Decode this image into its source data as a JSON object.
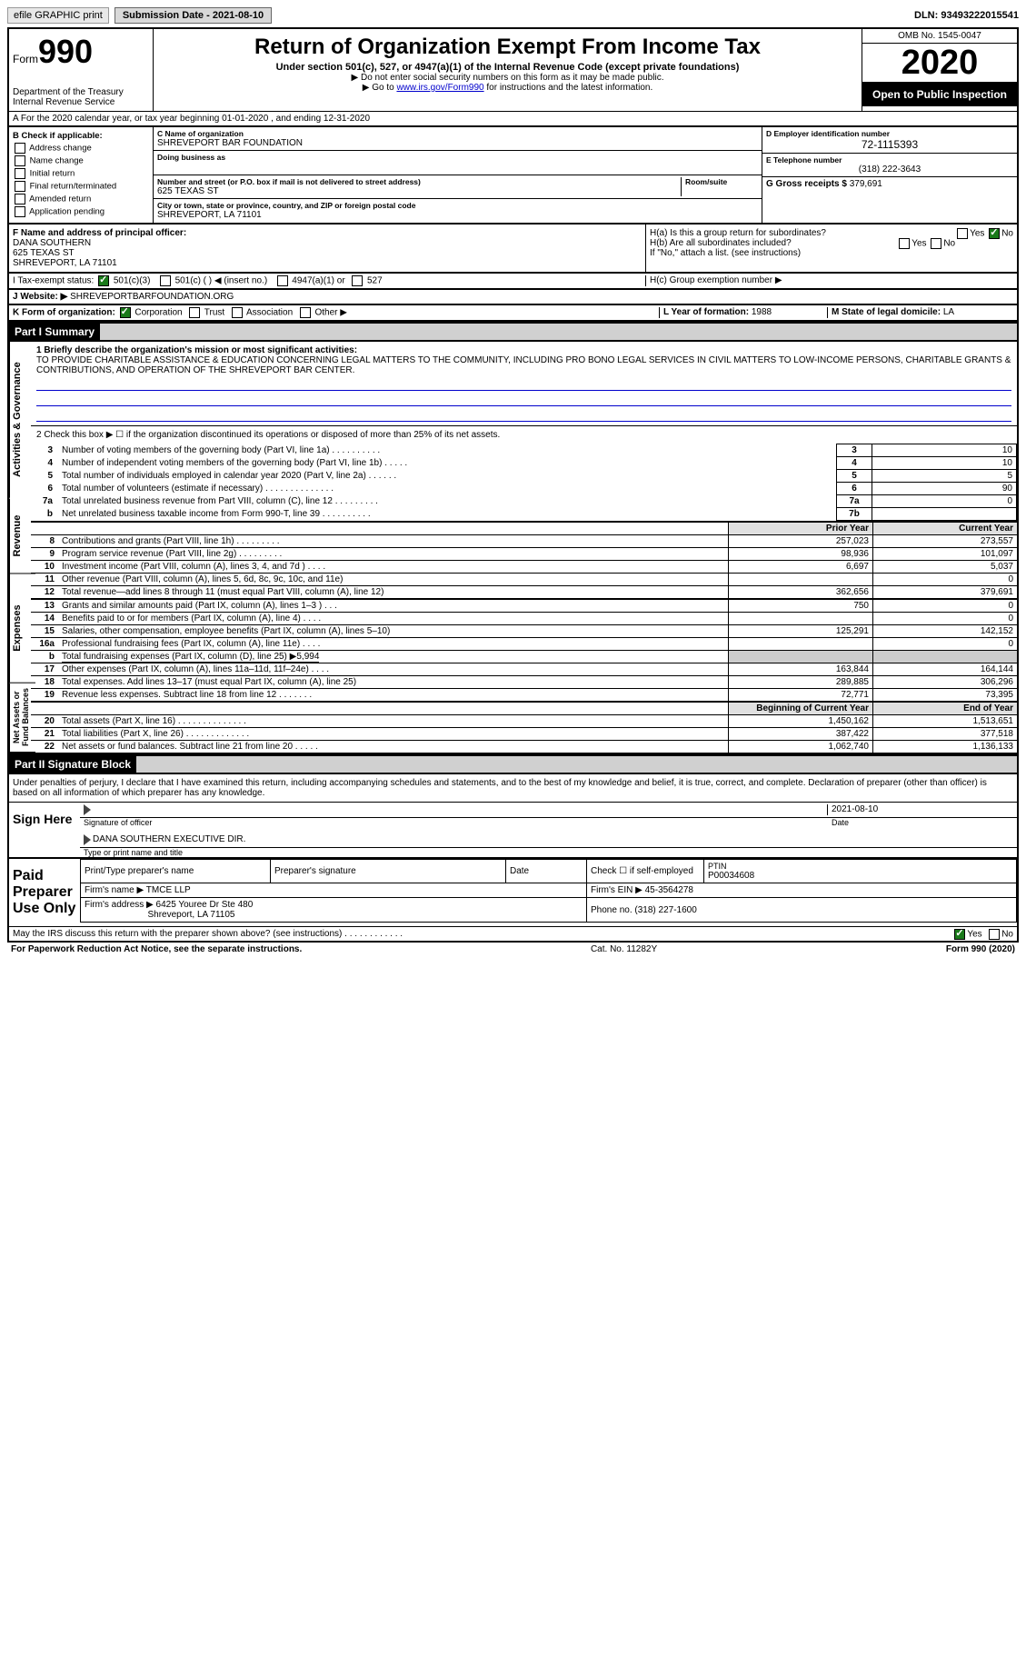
{
  "topbar": {
    "efile": "efile GRAPHIC print",
    "submission_label": "Submission Date - 2021-08-10",
    "dln": "DLN: 93493222015541"
  },
  "header": {
    "form_prefix": "Form",
    "form_number": "990",
    "dept": "Department of the Treasury Internal Revenue Service",
    "title": "Return of Organization Exempt From Income Tax",
    "subtitle": "Under section 501(c), 527, or 4947(a)(1) of the Internal Revenue Code (except private foundations)",
    "note1": "▶ Do not enter social security numbers on this form as it may be made public.",
    "note2_pre": "▶ Go to ",
    "note2_link": "www.irs.gov/Form990",
    "note2_post": " for instructions and the latest information.",
    "omb": "OMB No. 1545-0047",
    "year": "2020",
    "open_pub": "Open to Public Inspection"
  },
  "section_a": "A For the 2020 calendar year, or tax year beginning 01-01-2020   , and ending 12-31-2020",
  "box_b": {
    "label": "B Check if applicable:",
    "items": [
      "Address change",
      "Name change",
      "Initial return",
      "Final return/terminated",
      "Amended return",
      "Application pending"
    ]
  },
  "box_c": {
    "name_label": "C Name of organization",
    "name": "SHREVEPORT BAR FOUNDATION",
    "dba_label": "Doing business as",
    "street_label": "Number and street (or P.O. box if mail is not delivered to street address)",
    "street": "625 TEXAS ST",
    "room_label": "Room/suite",
    "city_label": "City or town, state or province, country, and ZIP or foreign postal code",
    "city": "SHREVEPORT, LA  71101"
  },
  "box_d": {
    "label": "D Employer identification number",
    "value": "72-1115393"
  },
  "box_e": {
    "label": "E Telephone number",
    "value": "(318) 222-3643"
  },
  "box_g": {
    "label": "G Gross receipts $",
    "value": "379,691"
  },
  "box_f": {
    "label": "F  Name and address of principal officer:",
    "name": "DANA SOUTHERN",
    "street": "625 TEXAS ST",
    "city": "SHREVEPORT, LA  71101"
  },
  "box_h": {
    "a": "H(a)  Is this a group return for subordinates?",
    "b": "H(b)  Are all subordinates included?",
    "note": "If \"No,\" attach a list. (see instructions)",
    "c": "H(c)  Group exemption number ▶"
  },
  "box_i": {
    "label": "I   Tax-exempt status:",
    "opts": [
      "501(c)(3)",
      "501(c) (  ) ◀ (insert no.)",
      "4947(a)(1) or",
      "527"
    ]
  },
  "box_j": {
    "label": "J   Website: ▶",
    "value": "SHREVEPORTBARFOUNDATION.ORG"
  },
  "box_k": {
    "label": "K Form of organization:",
    "opts": [
      "Corporation",
      "Trust",
      "Association",
      "Other ▶"
    ]
  },
  "box_l": {
    "label": "L Year of formation:",
    "value": "1988"
  },
  "box_m": {
    "label": "M State of legal domicile:",
    "value": "LA"
  },
  "part1": {
    "title": "Part I    Summary",
    "q1_label": "1  Briefly describe the organization's mission or most significant activities:",
    "q1_text": "TO PROVIDE CHARITABLE ASSISTANCE & EDUCATION CONCERNING LEGAL MATTERS TO THE COMMUNITY, INCLUDING PRO BONO LEGAL SERVICES IN CIVIL MATTERS TO LOW-INCOME PERSONS, CHARITABLE GRANTS & CONTRIBUTIONS, AND OPERATION OF THE SHREVEPORT BAR CENTER.",
    "q2": "2   Check this box ▶ ☐ if the organization discontinued its operations or disposed of more than 25% of its net assets.",
    "lines_gov": [
      {
        "n": "3",
        "desc": "Number of voting members of the governing body (Part VI, line 1a)  .   .   .   .   .   .   .   .   .   .",
        "box": "3",
        "val": "10"
      },
      {
        "n": "4",
        "desc": "Number of independent voting members of the governing body (Part VI, line 1b)   .   .   .   .   .",
        "box": "4",
        "val": "10"
      },
      {
        "n": "5",
        "desc": "Total number of individuals employed in calendar year 2020 (Part V, line 2a)   .   .   .   .   .   .",
        "box": "5",
        "val": "5"
      },
      {
        "n": "6",
        "desc": "Total number of volunteers (estimate if necessary)   .   .   .   .   .   .   .   .   .   .   .   .   .   .",
        "box": "6",
        "val": "90"
      },
      {
        "n": "7a",
        "desc": "Total unrelated business revenue from Part VIII, column (C), line 12   .   .   .   .   .   .   .   .   .",
        "box": "7a",
        "val": "0"
      },
      {
        "n": "b",
        "desc": "Net unrelated business taxable income from Form 990-T, line 39   .   .   .   .   .   .   .   .   .   .",
        "box": "7b",
        "val": ""
      }
    ],
    "py_hdr": "Prior Year",
    "cy_hdr": "Current Year",
    "lines_rev": [
      {
        "n": "8",
        "desc": "Contributions and grants (Part VIII, line 1h)   .   .   .   .   .   .   .   .   .",
        "py": "257,023",
        "cy": "273,557"
      },
      {
        "n": "9",
        "desc": "Program service revenue (Part VIII, line 2g)   .   .   .   .   .   .   .   .   .",
        "py": "98,936",
        "cy": "101,097"
      },
      {
        "n": "10",
        "desc": "Investment income (Part VIII, column (A), lines 3, 4, and 7d )   .   .   .   .",
        "py": "6,697",
        "cy": "5,037"
      },
      {
        "n": "11",
        "desc": "Other revenue (Part VIII, column (A), lines 5, 6d, 8c, 9c, 10c, and 11e)",
        "py": "",
        "cy": "0"
      },
      {
        "n": "12",
        "desc": "Total revenue—add lines 8 through 11 (must equal Part VIII, column (A), line 12)",
        "py": "362,656",
        "cy": "379,691"
      }
    ],
    "lines_exp": [
      {
        "n": "13",
        "desc": "Grants and similar amounts paid (Part IX, column (A), lines 1–3 )   .   .   .",
        "py": "750",
        "cy": "0"
      },
      {
        "n": "14",
        "desc": "Benefits paid to or for members (Part IX, column (A), line 4)   .   .   .   .",
        "py": "",
        "cy": "0"
      },
      {
        "n": "15",
        "desc": "Salaries, other compensation, employee benefits (Part IX, column (A), lines 5–10)",
        "py": "125,291",
        "cy": "142,152"
      },
      {
        "n": "16a",
        "desc": "Professional fundraising fees (Part IX, column (A), line 11e)   .   .   .   .",
        "py": "",
        "cy": "0"
      },
      {
        "n": "b",
        "desc": "Total fundraising expenses (Part IX, column (D), line 25) ▶5,994",
        "py": "",
        "cy": "",
        "noborder": true
      },
      {
        "n": "17",
        "desc": "Other expenses (Part IX, column (A), lines 11a–11d, 11f–24e)   .   .   .   .",
        "py": "163,844",
        "cy": "164,144"
      },
      {
        "n": "18",
        "desc": "Total expenses. Add lines 13–17 (must equal Part IX, column (A), line 25)",
        "py": "289,885",
        "cy": "306,296"
      },
      {
        "n": "19",
        "desc": "Revenue less expenses. Subtract line 18 from line 12   .   .   .   .   .   .   .",
        "py": "72,771",
        "cy": "73,395"
      }
    ],
    "boy_hdr": "Beginning of Current Year",
    "eoy_hdr": "End of Year",
    "lines_net": [
      {
        "n": "20",
        "desc": "Total assets (Part X, line 16)   .   .   .   .   .   .   .   .   .   .   .   .   .   .",
        "py": "1,450,162",
        "cy": "1,513,651"
      },
      {
        "n": "21",
        "desc": "Total liabilities (Part X, line 26)   .   .   .   .   .   .   .   .   .   .   .   .   .",
        "py": "387,422",
        "cy": "377,518"
      },
      {
        "n": "22",
        "desc": "Net assets or fund balances. Subtract line 21 from line 20   .   .   .   .   .",
        "py": "1,062,740",
        "cy": "1,136,133"
      }
    ],
    "side_labels": {
      "gov": "Activities & Governance",
      "rev": "Revenue",
      "exp": "Expenses",
      "net": "Net Assets or Fund Balances"
    }
  },
  "part2": {
    "title": "Part II    Signature Block",
    "decl": "Under penalties of perjury, I declare that I have examined this return, including accompanying schedules and statements, and to the best of my knowledge and belief, it is true, correct, and complete. Declaration of preparer (other than officer) is based on all information of which preparer has any knowledge.",
    "sign_here": "Sign Here",
    "sig_officer": "Signature of officer",
    "date_label": "Date",
    "date_val": "2021-08-10",
    "name_title": "DANA SOUTHERN  EXECUTIVE DIR.",
    "type_label": "Type or print name and title",
    "paid_prep": "Paid Preparer Use Only",
    "prep_hdrs": [
      "Print/Type preparer's name",
      "Preparer's signature",
      "Date"
    ],
    "check_if": "Check ☐ if self-employed",
    "ptin_label": "PTIN",
    "ptin": "P00034608",
    "firm_name_label": "Firm's name    ▶",
    "firm_name": "TMCE LLP",
    "firm_ein_label": "Firm's EIN ▶",
    "firm_ein": "45-3564278",
    "firm_addr_label": "Firm's address ▶",
    "firm_addr1": "6425 Youree Dr Ste 480",
    "firm_addr2": "Shreveport, LA  71105",
    "phone_label": "Phone no.",
    "phone": "(318) 227-1600",
    "discuss": "May the IRS discuss this return with the preparer shown above? (see instructions)   .   .   .   .   .   .   .   .   .   .   .   .",
    "yes": "Yes",
    "no": "No"
  },
  "footer": {
    "left": "For Paperwork Reduction Act Notice, see the separate instructions.",
    "mid": "Cat. No. 11282Y",
    "right": "Form 990 (2020)"
  }
}
